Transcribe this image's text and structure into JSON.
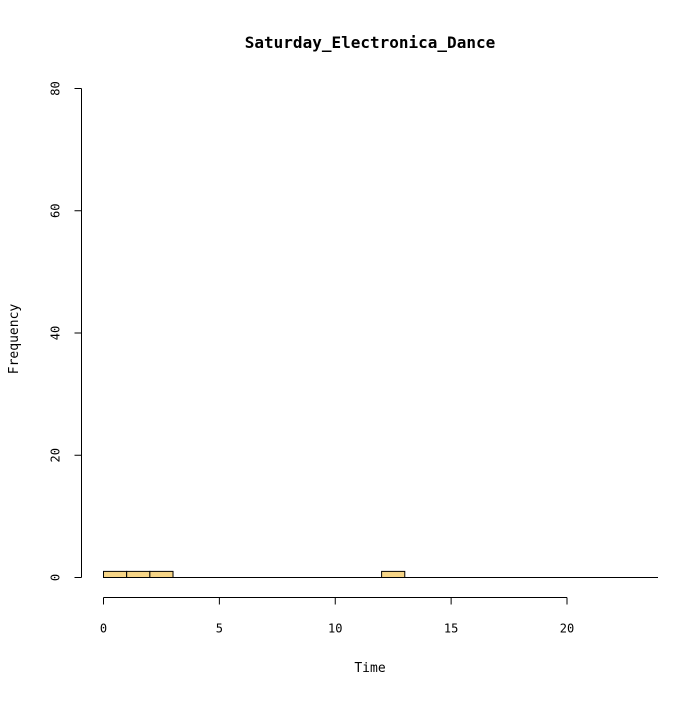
{
  "chart_data": {
    "type": "bar",
    "title": "Saturday_Electronica_Dance",
    "xlabel": "Time",
    "ylabel": "Frequency",
    "bins": [
      {
        "start": 0,
        "end": 1,
        "count": 1
      },
      {
        "start": 1,
        "end": 2,
        "count": 1
      },
      {
        "start": 2,
        "end": 3,
        "count": 1
      },
      {
        "start": 3,
        "end": 4,
        "count": 0
      },
      {
        "start": 4,
        "end": 5,
        "count": 0
      },
      {
        "start": 5,
        "end": 6,
        "count": 0
      },
      {
        "start": 6,
        "end": 7,
        "count": 0
      },
      {
        "start": 7,
        "end": 8,
        "count": 0
      },
      {
        "start": 8,
        "end": 9,
        "count": 0
      },
      {
        "start": 9,
        "end": 10,
        "count": 0
      },
      {
        "start": 10,
        "end": 11,
        "count": 0
      },
      {
        "start": 11,
        "end": 12,
        "count": 0
      },
      {
        "start": 12,
        "end": 13,
        "count": 1
      },
      {
        "start": 13,
        "end": 14,
        "count": 0
      },
      {
        "start": 14,
        "end": 15,
        "count": 0
      },
      {
        "start": 15,
        "end": 16,
        "count": 0
      },
      {
        "start": 16,
        "end": 17,
        "count": 0
      },
      {
        "start": 17,
        "end": 18,
        "count": 0
      },
      {
        "start": 18,
        "end": 19,
        "count": 0
      },
      {
        "start": 19,
        "end": 20,
        "count": 0
      },
      {
        "start": 20,
        "end": 21,
        "count": 0
      },
      {
        "start": 21,
        "end": 22,
        "count": 0
      },
      {
        "start": 22,
        "end": 23,
        "count": 0
      },
      {
        "start": 23,
        "end": 24,
        "count": 0
      }
    ],
    "x_ticks": [
      0,
      5,
      10,
      15,
      20
    ],
    "x_tick_labels": [
      "0",
      "5",
      "10",
      "15",
      "20"
    ],
    "y_ticks": [
      0,
      20,
      40,
      60,
      80
    ],
    "y_tick_labels": [
      "0",
      "20",
      "40",
      "60",
      "80"
    ],
    "xlim": [
      0,
      24
    ],
    "ylim": [
      0,
      80
    ],
    "grid": false,
    "colors": {
      "bar_fill": "#F6D587",
      "bar_stroke": "#000000",
      "axis": "#000000"
    }
  }
}
